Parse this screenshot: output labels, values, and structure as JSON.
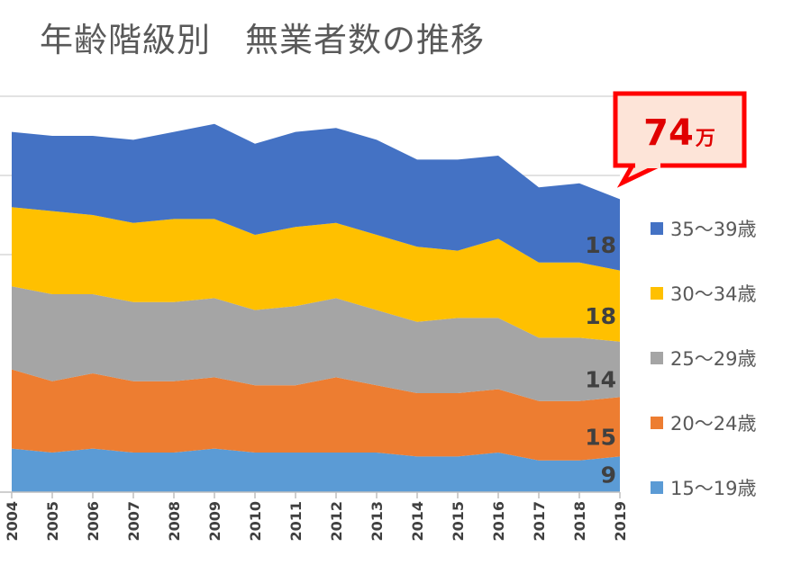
{
  "chart_data": {
    "type": "area",
    "stacked": true,
    "title": "年齢階級別　無業者数の推移",
    "x": [
      "2004",
      "2005",
      "2006",
      "2007",
      "2008",
      "2009",
      "2010",
      "2011",
      "2012",
      "2013",
      "2014",
      "2015",
      "2016",
      "2017",
      "2018",
      "2019"
    ],
    "series": [
      {
        "name": "15～19歳",
        "color": "#5b9bd5",
        "values": [
          11,
          10,
          11,
          10,
          10,
          11,
          10,
          10,
          10,
          10,
          9,
          9,
          10,
          8,
          8,
          9
        ]
      },
      {
        "name": "20～24歳",
        "color": "#ed7d31",
        "values": [
          20,
          18,
          19,
          18,
          18,
          18,
          17,
          17,
          19,
          17,
          16,
          16,
          16,
          15,
          15,
          15
        ]
      },
      {
        "name": "25～29歳",
        "color": "#a5a5a5",
        "values": [
          21,
          22,
          20,
          20,
          20,
          20,
          19,
          20,
          20,
          19,
          18,
          19,
          18,
          16,
          16,
          14
        ]
      },
      {
        "name": "30～34歳",
        "color": "#ffc000",
        "values": [
          20,
          21,
          20,
          20,
          21,
          20,
          19,
          20,
          19,
          19,
          19,
          17,
          20,
          19,
          19,
          18
        ]
      },
      {
        "name": "35～39歳",
        "color": "#4472c4",
        "values": [
          19,
          19,
          20,
          21,
          22,
          24,
          23,
          24,
          24,
          24,
          22,
          23,
          21,
          19,
          20,
          18
        ]
      }
    ],
    "ylim": [
      0,
      100
    ],
    "end_labels": [
      "9",
      "15",
      "14",
      "18",
      "18"
    ],
    "callout": {
      "value": "74",
      "unit": "万"
    },
    "legend_position": "right",
    "gridlines": true
  }
}
